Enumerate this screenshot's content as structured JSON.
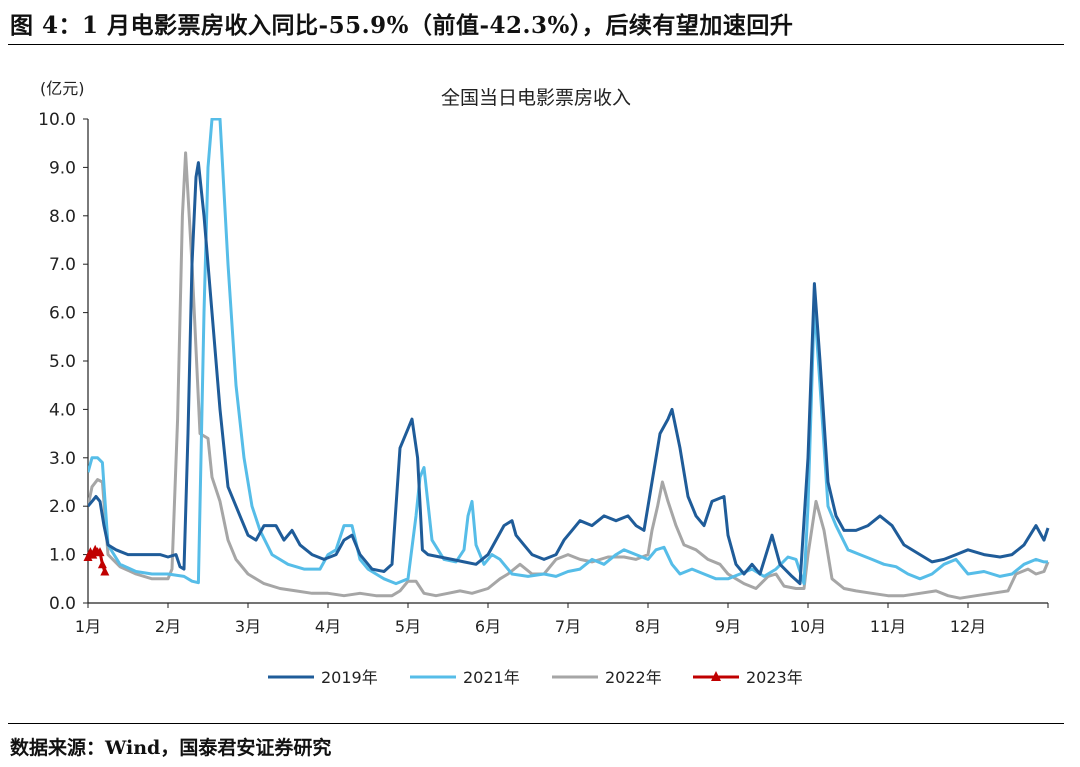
{
  "figure": {
    "title": "图 4：1 月电影票房收入同比-55.9%（前值-42.3%），后续有望加速回升",
    "source": "数据来源：Wind，国泰君安证券研究"
  },
  "chart_data": {
    "type": "line",
    "title": "全国当日电影票房收入",
    "ylabel": "(亿元)",
    "xlabel": "",
    "ylim": [
      0,
      10
    ],
    "yticks": [
      "0.0",
      "1.0",
      "2.0",
      "3.0",
      "4.0",
      "5.0",
      "6.0",
      "7.0",
      "8.0",
      "9.0",
      "10.0"
    ],
    "xlim": [
      1,
      13
    ],
    "xticks": [
      {
        "label": "1月",
        "x": 1
      },
      {
        "label": "2月",
        "x": 2
      },
      {
        "label": "3月",
        "x": 3
      },
      {
        "label": "4月",
        "x": 4
      },
      {
        "label": "5月",
        "x": 5
      },
      {
        "label": "6月",
        "x": 6
      },
      {
        "label": "7月",
        "x": 7
      },
      {
        "label": "8月",
        "x": 8
      },
      {
        "label": "9月",
        "x": 9
      },
      {
        "label": "10月",
        "x": 10
      },
      {
        "label": "11月",
        "x": 11
      },
      {
        "label": "12月",
        "x": 12
      }
    ],
    "x_unit": "month (1.0 = 1月1日)",
    "legend_position": "bottom",
    "grid": false,
    "series": [
      {
        "name": "2019年",
        "color": "#1f5c99",
        "points": [
          [
            1.0,
            2.0
          ],
          [
            1.05,
            2.1
          ],
          [
            1.1,
            2.2
          ],
          [
            1.15,
            2.1
          ],
          [
            1.2,
            1.6
          ],
          [
            1.25,
            1.2
          ],
          [
            1.35,
            1.1
          ],
          [
            1.5,
            1.0
          ],
          [
            1.7,
            1.0
          ],
          [
            1.9,
            1.0
          ],
          [
            2.0,
            0.95
          ],
          [
            2.1,
            1.0
          ],
          [
            2.15,
            0.75
          ],
          [
            2.2,
            0.7
          ],
          [
            2.25,
            3.5
          ],
          [
            2.3,
            7.0
          ],
          [
            2.35,
            8.8
          ],
          [
            2.38,
            9.1
          ],
          [
            2.45,
            8.0
          ],
          [
            2.55,
            6.0
          ],
          [
            2.65,
            4.0
          ],
          [
            2.75,
            2.4
          ],
          [
            2.9,
            1.8
          ],
          [
            3.0,
            1.4
          ],
          [
            3.1,
            1.3
          ],
          [
            3.2,
            1.6
          ],
          [
            3.35,
            1.6
          ],
          [
            3.45,
            1.3
          ],
          [
            3.55,
            1.5
          ],
          [
            3.65,
            1.2
          ],
          [
            3.8,
            1.0
          ],
          [
            3.95,
            0.9
          ],
          [
            4.1,
            1.0
          ],
          [
            4.2,
            1.3
          ],
          [
            4.3,
            1.4
          ],
          [
            4.4,
            1.0
          ],
          [
            4.55,
            0.7
          ],
          [
            4.7,
            0.65
          ],
          [
            4.8,
            0.8
          ],
          [
            4.9,
            3.2
          ],
          [
            5.0,
            3.6
          ],
          [
            5.05,
            3.8
          ],
          [
            5.12,
            3.0
          ],
          [
            5.18,
            1.1
          ],
          [
            5.25,
            1.0
          ],
          [
            5.4,
            0.95
          ],
          [
            5.55,
            0.9
          ],
          [
            5.7,
            0.85
          ],
          [
            5.85,
            0.8
          ],
          [
            6.0,
            1.0
          ],
          [
            6.1,
            1.3
          ],
          [
            6.2,
            1.6
          ],
          [
            6.3,
            1.7
          ],
          [
            6.35,
            1.4
          ],
          [
            6.45,
            1.2
          ],
          [
            6.55,
            1.0
          ],
          [
            6.7,
            0.9
          ],
          [
            6.85,
            1.0
          ],
          [
            6.95,
            1.3
          ],
          [
            7.05,
            1.5
          ],
          [
            7.15,
            1.7
          ],
          [
            7.3,
            1.6
          ],
          [
            7.45,
            1.8
          ],
          [
            7.6,
            1.7
          ],
          [
            7.75,
            1.8
          ],
          [
            7.85,
            1.6
          ],
          [
            7.95,
            1.5
          ],
          [
            8.05,
            2.5
          ],
          [
            8.15,
            3.5
          ],
          [
            8.25,
            3.8
          ],
          [
            8.3,
            4.0
          ],
          [
            8.4,
            3.2
          ],
          [
            8.5,
            2.2
          ],
          [
            8.6,
            1.8
          ],
          [
            8.7,
            1.6
          ],
          [
            8.8,
            2.1
          ],
          [
            8.95,
            2.2
          ],
          [
            9.0,
            1.4
          ],
          [
            9.1,
            0.8
          ],
          [
            9.2,
            0.6
          ],
          [
            9.3,
            0.8
          ],
          [
            9.4,
            0.6
          ],
          [
            9.55,
            1.4
          ],
          [
            9.65,
            0.8
          ],
          [
            9.8,
            0.55
          ],
          [
            9.9,
            0.4
          ],
          [
            10.0,
            3.0
          ],
          [
            10.08,
            6.6
          ],
          [
            10.15,
            5.0
          ],
          [
            10.25,
            2.5
          ],
          [
            10.35,
            1.8
          ],
          [
            10.45,
            1.5
          ],
          [
            10.6,
            1.5
          ],
          [
            10.75,
            1.6
          ],
          [
            10.9,
            1.8
          ],
          [
            11.05,
            1.6
          ],
          [
            11.2,
            1.2
          ],
          [
            11.4,
            1.0
          ],
          [
            11.55,
            0.85
          ],
          [
            11.7,
            0.9
          ],
          [
            11.85,
            1.0
          ],
          [
            12.0,
            1.1
          ],
          [
            12.2,
            1.0
          ],
          [
            12.4,
            0.95
          ],
          [
            12.55,
            1.0
          ],
          [
            12.7,
            1.2
          ],
          [
            12.85,
            1.6
          ],
          [
            12.95,
            1.3
          ],
          [
            13.0,
            1.55
          ]
        ]
      },
      {
        "name": "2021年",
        "color": "#56bde8",
        "points": [
          [
            1.0,
            2.7
          ],
          [
            1.05,
            3.0
          ],
          [
            1.12,
            3.0
          ],
          [
            1.18,
            2.9
          ],
          [
            1.25,
            1.2
          ],
          [
            1.4,
            0.8
          ],
          [
            1.6,
            0.65
          ],
          [
            1.8,
            0.6
          ],
          [
            2.0,
            0.6
          ],
          [
            2.2,
            0.55
          ],
          [
            2.3,
            0.45
          ],
          [
            2.38,
            0.42
          ],
          [
            2.45,
            6.0
          ],
          [
            2.5,
            9.0
          ],
          [
            2.55,
            10.0
          ],
          [
            2.65,
            10.0
          ],
          [
            2.75,
            7.0
          ],
          [
            2.85,
            4.5
          ],
          [
            2.95,
            3.0
          ],
          [
            3.05,
            2.0
          ],
          [
            3.15,
            1.5
          ],
          [
            3.3,
            1.0
          ],
          [
            3.5,
            0.8
          ],
          [
            3.7,
            0.7
          ],
          [
            3.9,
            0.7
          ],
          [
            4.0,
            1.0
          ],
          [
            4.1,
            1.1
          ],
          [
            4.2,
            1.6
          ],
          [
            4.3,
            1.6
          ],
          [
            4.4,
            0.9
          ],
          [
            4.5,
            0.7
          ],
          [
            4.7,
            0.5
          ],
          [
            4.85,
            0.4
          ],
          [
            5.0,
            0.5
          ],
          [
            5.1,
            1.8
          ],
          [
            5.15,
            2.6
          ],
          [
            5.2,
            2.8
          ],
          [
            5.3,
            1.3
          ],
          [
            5.45,
            0.9
          ],
          [
            5.6,
            0.85
          ],
          [
            5.7,
            1.1
          ],
          [
            5.75,
            1.8
          ],
          [
            5.8,
            2.1
          ],
          [
            5.85,
            1.2
          ],
          [
            5.95,
            0.8
          ],
          [
            6.05,
            1.0
          ],
          [
            6.15,
            0.9
          ],
          [
            6.3,
            0.6
          ],
          [
            6.5,
            0.55
          ],
          [
            6.7,
            0.6
          ],
          [
            6.85,
            0.55
          ],
          [
            7.0,
            0.65
          ],
          [
            7.15,
            0.7
          ],
          [
            7.3,
            0.9
          ],
          [
            7.45,
            0.8
          ],
          [
            7.6,
            1.0
          ],
          [
            7.7,
            1.1
          ],
          [
            7.85,
            1.0
          ],
          [
            8.0,
            0.9
          ],
          [
            8.1,
            1.1
          ],
          [
            8.2,
            1.15
          ],
          [
            8.3,
            0.8
          ],
          [
            8.4,
            0.6
          ],
          [
            8.55,
            0.7
          ],
          [
            8.7,
            0.6
          ],
          [
            8.85,
            0.5
          ],
          [
            9.0,
            0.5
          ],
          [
            9.15,
            0.6
          ],
          [
            9.3,
            0.7
          ],
          [
            9.45,
            0.55
          ],
          [
            9.6,
            0.7
          ],
          [
            9.75,
            0.95
          ],
          [
            9.85,
            0.9
          ],
          [
            9.95,
            0.4
          ],
          [
            10.0,
            2.0
          ],
          [
            10.08,
            6.2
          ],
          [
            10.15,
            4.5
          ],
          [
            10.25,
            2.0
          ],
          [
            10.35,
            1.6
          ],
          [
            10.5,
            1.1
          ],
          [
            10.65,
            1.0
          ],
          [
            10.8,
            0.9
          ],
          [
            10.95,
            0.8
          ],
          [
            11.1,
            0.75
          ],
          [
            11.25,
            0.6
          ],
          [
            11.4,
            0.5
          ],
          [
            11.55,
            0.6
          ],
          [
            11.7,
            0.8
          ],
          [
            11.85,
            0.9
          ],
          [
            12.0,
            0.6
          ],
          [
            12.2,
            0.65
          ],
          [
            12.4,
            0.55
          ],
          [
            12.55,
            0.6
          ],
          [
            12.7,
            0.8
          ],
          [
            12.85,
            0.9
          ],
          [
            12.95,
            0.85
          ],
          [
            13.0,
            0.85
          ]
        ]
      },
      {
        "name": "2022年",
        "color": "#a6a6a6",
        "points": [
          [
            1.0,
            2.0
          ],
          [
            1.05,
            2.4
          ],
          [
            1.12,
            2.55
          ],
          [
            1.18,
            2.5
          ],
          [
            1.25,
            1.0
          ],
          [
            1.4,
            0.75
          ],
          [
            1.6,
            0.6
          ],
          [
            1.8,
            0.5
          ],
          [
            2.0,
            0.5
          ],
          [
            2.05,
            0.7
          ],
          [
            2.12,
            3.8
          ],
          [
            2.18,
            8.0
          ],
          [
            2.22,
            9.3
          ],
          [
            2.3,
            7.0
          ],
          [
            2.4,
            3.5
          ],
          [
            2.5,
            3.4
          ],
          [
            2.55,
            2.6
          ],
          [
            2.65,
            2.1
          ],
          [
            2.75,
            1.3
          ],
          [
            2.85,
            0.9
          ],
          [
            3.0,
            0.6
          ],
          [
            3.2,
            0.4
          ],
          [
            3.4,
            0.3
          ],
          [
            3.6,
            0.25
          ],
          [
            3.8,
            0.2
          ],
          [
            4.0,
            0.2
          ],
          [
            4.2,
            0.15
          ],
          [
            4.4,
            0.2
          ],
          [
            4.6,
            0.15
          ],
          [
            4.8,
            0.15
          ],
          [
            4.9,
            0.25
          ],
          [
            5.0,
            0.45
          ],
          [
            5.1,
            0.45
          ],
          [
            5.2,
            0.2
          ],
          [
            5.35,
            0.15
          ],
          [
            5.5,
            0.2
          ],
          [
            5.65,
            0.25
          ],
          [
            5.8,
            0.2
          ],
          [
            6.0,
            0.3
          ],
          [
            6.15,
            0.5
          ],
          [
            6.25,
            0.6
          ],
          [
            6.4,
            0.8
          ],
          [
            6.55,
            0.6
          ],
          [
            6.7,
            0.6
          ],
          [
            6.85,
            0.9
          ],
          [
            7.0,
            1.0
          ],
          [
            7.15,
            0.9
          ],
          [
            7.3,
            0.85
          ],
          [
            7.5,
            0.95
          ],
          [
            7.7,
            0.95
          ],
          [
            7.85,
            0.9
          ],
          [
            8.0,
            1.0
          ],
          [
            8.05,
            1.5
          ],
          [
            8.12,
            2.0
          ],
          [
            8.18,
            2.5
          ],
          [
            8.25,
            2.1
          ],
          [
            8.35,
            1.6
          ],
          [
            8.45,
            1.2
          ],
          [
            8.6,
            1.1
          ],
          [
            8.75,
            0.9
          ],
          [
            8.9,
            0.8
          ],
          [
            9.0,
            0.6
          ],
          [
            9.1,
            0.5
          ],
          [
            9.2,
            0.4
          ],
          [
            9.35,
            0.3
          ],
          [
            9.5,
            0.55
          ],
          [
            9.6,
            0.6
          ],
          [
            9.7,
            0.35
          ],
          [
            9.85,
            0.3
          ],
          [
            9.95,
            0.3
          ],
          [
            10.0,
            1.0
          ],
          [
            10.1,
            2.1
          ],
          [
            10.2,
            1.5
          ],
          [
            10.3,
            0.5
          ],
          [
            10.45,
            0.3
          ],
          [
            10.6,
            0.25
          ],
          [
            10.8,
            0.2
          ],
          [
            11.0,
            0.15
          ],
          [
            11.2,
            0.15
          ],
          [
            11.4,
            0.2
          ],
          [
            11.6,
            0.25
          ],
          [
            11.75,
            0.15
          ],
          [
            11.9,
            0.1
          ],
          [
            12.1,
            0.15
          ],
          [
            12.3,
            0.2
          ],
          [
            12.5,
            0.25
          ],
          [
            12.6,
            0.6
          ],
          [
            12.75,
            0.7
          ],
          [
            12.85,
            0.6
          ],
          [
            12.95,
            0.65
          ],
          [
            13.0,
            0.85
          ]
        ]
      },
      {
        "name": "2023年",
        "color": "#c00000",
        "marker": "triangle",
        "points": [
          [
            1.0,
            0.95
          ],
          [
            1.03,
            1.05
          ],
          [
            1.06,
            1.0
          ],
          [
            1.09,
            1.1
          ],
          [
            1.12,
            1.05
          ],
          [
            1.15,
            1.05
          ],
          [
            1.18,
            0.8
          ],
          [
            1.21,
            0.65
          ]
        ]
      }
    ]
  }
}
